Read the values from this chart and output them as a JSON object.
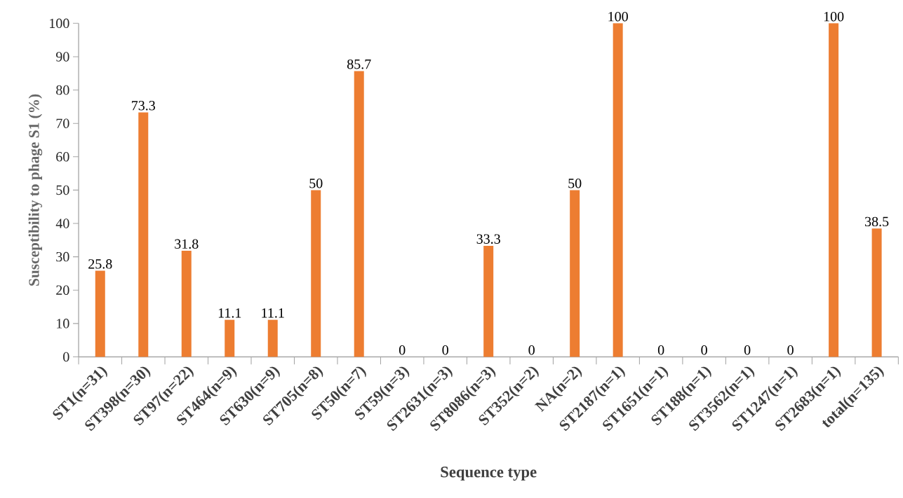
{
  "chart_data": {
    "type": "bar",
    "xlabel": "Sequence type",
    "ylabel": "Susceptibility to phage S1 (%)",
    "categories": [
      "ST1(n=31)",
      "ST398(n=30)",
      "ST97(n=22)",
      "ST464(n=9)",
      "ST630(n=9)",
      "ST705(n=8)",
      "ST50(n=7)",
      "ST59(n=3)",
      "ST2631(n=3)",
      "ST8086(n=3)",
      "ST352(n=2)",
      "NA(n=2)",
      "ST2187(n=1)",
      "ST1651(n=1)",
      "ST188(n=1)",
      "ST3562(n=1)",
      "ST1247(n=1)",
      "ST2683(n=1)",
      "total(n=135)"
    ],
    "values": [
      25.8,
      73.3,
      31.8,
      11.1,
      11.1,
      50,
      85.7,
      0,
      0,
      33.3,
      0,
      50,
      100,
      0,
      0,
      0,
      0,
      100,
      38.5
    ],
    "color": "#ed7d31",
    "ylim": [
      0,
      100
    ],
    "yticks": [
      0,
      10,
      20,
      30,
      40,
      50,
      60,
      70,
      80,
      90,
      100
    ],
    "data_labels": true
  }
}
